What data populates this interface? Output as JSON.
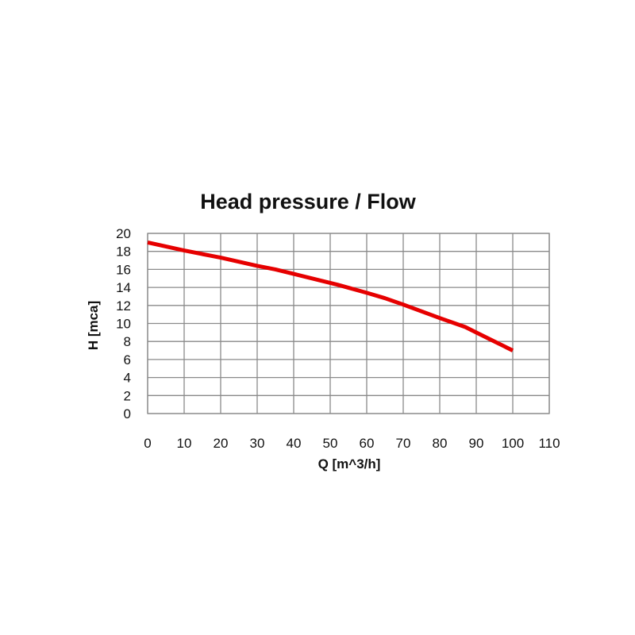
{
  "chart_data": {
    "type": "line",
    "title": "Head pressure / Flow",
    "xlabel": "Q [m^3/h]",
    "ylabel": "H [mca]",
    "xlim": [
      0,
      110
    ],
    "ylim": [
      0,
      20
    ],
    "x_ticks": [
      "0",
      "10",
      "20",
      "30",
      "40",
      "50",
      "60",
      "70",
      "80",
      "90",
      "100",
      "110"
    ],
    "y_ticks": [
      "0",
      "2",
      "4",
      "6",
      "8",
      "10",
      "12",
      "14",
      "16",
      "18",
      "20"
    ],
    "grid": true,
    "series": [
      {
        "x": [
          0,
          10,
          20,
          30,
          35,
          40,
          50,
          52,
          60,
          65,
          70,
          80,
          87,
          90,
          95,
          100
        ],
        "y": [
          19,
          18.1,
          17.3,
          16.4,
          16.0,
          15.5,
          14.5,
          14.3,
          13.4,
          12.8,
          12.1,
          10.6,
          9.6,
          9.0,
          8.0,
          7.0
        ]
      }
    ],
    "colors": {
      "series": "#e60000",
      "grid": "#8a8a8a",
      "text": "#111111"
    }
  }
}
